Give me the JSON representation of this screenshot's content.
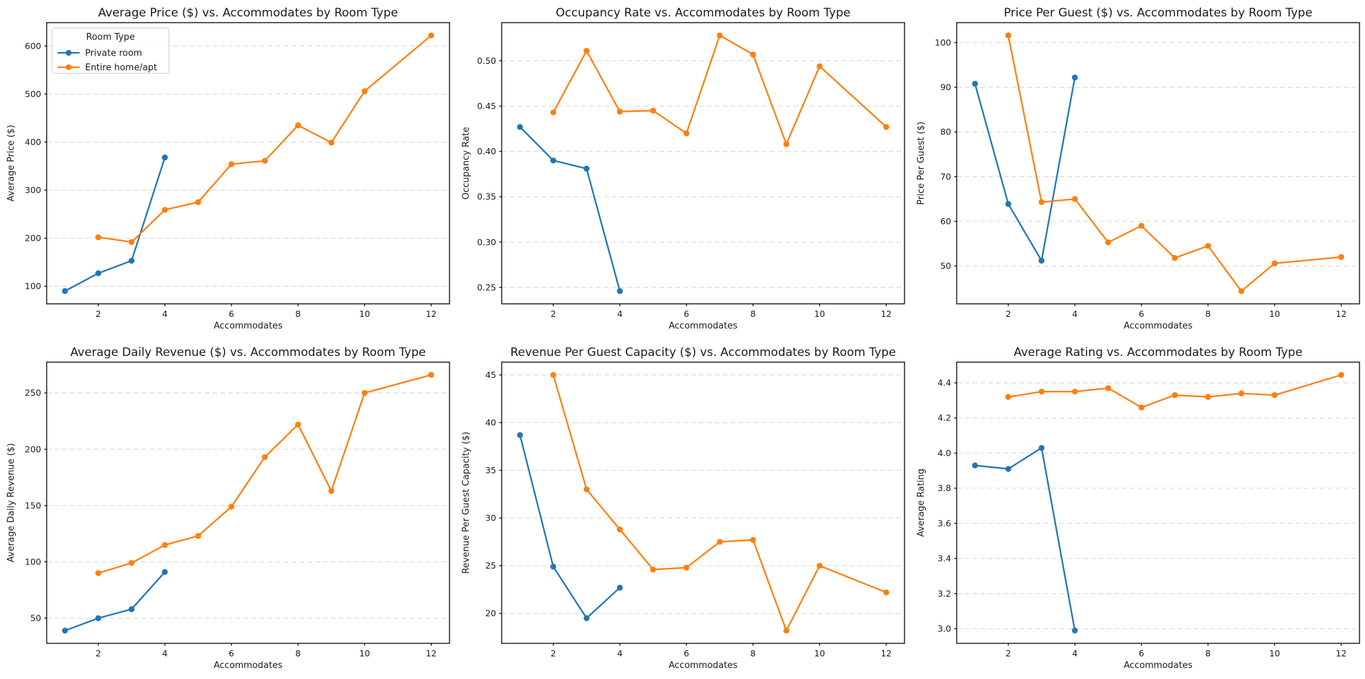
{
  "page": {
    "background": "#ffffff"
  },
  "colors": {
    "private_room": "#1f77b4",
    "entire_home": "#ff7f0e",
    "grid": "#d4d4d4",
    "axis": "#000000",
    "text": "#1a1a1a",
    "legend_border": "#cccccc",
    "legend_fill": "#ffffff"
  },
  "legend": {
    "title": "Room Type",
    "entries": [
      {
        "label": "Private room",
        "color": "#1f77b4"
      },
      {
        "label": "Entire home/apt",
        "color": "#ff7f0e"
      }
    ]
  },
  "chart_data": [
    {
      "type": "line",
      "title": "Average Price ($) vs. Accommodates by Room Type",
      "xlabel": "Accommodates",
      "ylabel": "Average Price ($)",
      "xlim": [
        0.45,
        12.55
      ],
      "ylim": [
        63.35,
        648.65
      ],
      "xticks": [
        2,
        4,
        6,
        8,
        10,
        12
      ],
      "yticks": {
        "values": [
          100,
          200,
          300,
          400,
          500,
          600
        ],
        "labels": [
          "100",
          "200",
          "300",
          "400",
          "500",
          "600"
        ]
      },
      "grid": "horizontal-dashed",
      "show_legend": true,
      "legend_position": "upper-left",
      "series": [
        {
          "name": "Private room",
          "color": "#1f77b4",
          "x": [
            1,
            2,
            3,
            4
          ],
          "y": [
            90,
            127,
            153,
            368
          ]
        },
        {
          "name": "Entire home/apt",
          "color": "#ff7f0e",
          "x": [
            2,
            3,
            4,
            5,
            6,
            7,
            8,
            9,
            10,
            12
          ],
          "y": [
            202,
            192,
            259,
            275,
            354,
            361,
            435,
            399,
            506,
            622
          ]
        }
      ]
    },
    {
      "type": "line",
      "title": "Occupancy Rate vs. Accommodates by Room Type",
      "xlabel": "Accommodates",
      "ylabel": "Occupancy Rate",
      "xlim": [
        0.45,
        12.55
      ],
      "ylim": [
        0.2319,
        0.5421
      ],
      "xticks": [
        2,
        4,
        6,
        8,
        10,
        12
      ],
      "yticks": {
        "values": [
          0.25,
          0.3,
          0.35,
          0.4,
          0.45,
          0.5
        ],
        "labels": [
          "0.25",
          "0.30",
          "0.35",
          "0.40",
          "0.45",
          "0.50"
        ]
      },
      "grid": "horizontal-dashed",
      "show_legend": false,
      "series": [
        {
          "name": "Private room",
          "color": "#1f77b4",
          "x": [
            1,
            2,
            3,
            4
          ],
          "y": [
            0.427,
            0.39,
            0.381,
            0.246
          ]
        },
        {
          "name": "Entire home/apt",
          "color": "#ff7f0e",
          "x": [
            2,
            3,
            4,
            5,
            6,
            7,
            8,
            9,
            10,
            12
          ],
          "y": [
            0.443,
            0.511,
            0.444,
            0.445,
            0.42,
            0.528,
            0.507,
            0.408,
            0.494,
            0.427
          ]
        }
      ]
    },
    {
      "type": "line",
      "title": "Price Per Guest ($) vs. Accommodates by Room Type",
      "xlabel": "Accommodates",
      "ylabel": "Price Per Guest ($)",
      "xlim": [
        0.45,
        12.55
      ],
      "ylim": [
        41.54,
        104.46
      ],
      "xticks": [
        2,
        4,
        6,
        8,
        10,
        12
      ],
      "yticks": {
        "values": [
          50,
          60,
          70,
          80,
          90,
          100
        ],
        "labels": [
          "50",
          "60",
          "70",
          "80",
          "90",
          "100"
        ]
      },
      "grid": "horizontal-dashed",
      "show_legend": false,
      "series": [
        {
          "name": "Private room",
          "color": "#1f77b4",
          "x": [
            1,
            2,
            3,
            4
          ],
          "y": [
            90.8,
            63.9,
            51.2,
            92.2
          ]
        },
        {
          "name": "Entire home/apt",
          "color": "#ff7f0e",
          "x": [
            2,
            3,
            4,
            5,
            6,
            7,
            8,
            9,
            10,
            12
          ],
          "y": [
            101.6,
            64.3,
            65.0,
            55.3,
            59.0,
            51.8,
            54.5,
            44.4,
            50.6,
            52.0
          ]
        }
      ]
    },
    {
      "type": "line",
      "title": "Average Daily Revenue ($) vs. Accommodates by Room Type",
      "xlabel": "Accommodates",
      "ylabel": "Average Daily Revenue ($)",
      "xlim": [
        0.45,
        12.55
      ],
      "ylim": [
        27.65,
        277.35
      ],
      "xticks": [
        2,
        4,
        6,
        8,
        10,
        12
      ],
      "yticks": {
        "values": [
          50,
          100,
          150,
          200,
          250
        ],
        "labels": [
          "50",
          "100",
          "150",
          "200",
          "250"
        ]
      },
      "grid": "horizontal-dashed",
      "show_legend": false,
      "series": [
        {
          "name": "Private room",
          "color": "#1f77b4",
          "x": [
            1,
            2,
            3,
            4
          ],
          "y": [
            39,
            50,
            58,
            91
          ]
        },
        {
          "name": "Entire home/apt",
          "color": "#ff7f0e",
          "x": [
            2,
            3,
            4,
            5,
            6,
            7,
            8,
            9,
            10,
            12
          ],
          "y": [
            90,
            99,
            115,
            123,
            149,
            193,
            222,
            163,
            250,
            266
          ]
        }
      ]
    },
    {
      "type": "line",
      "title": "Revenue Per Guest Capacity ($) vs. Accommodates by Room Type",
      "xlabel": "Accommodates",
      "ylabel": "Revenue Per Guest Capacity ($)",
      "xlim": [
        0.45,
        12.55
      ],
      "ylim": [
        16.86,
        46.34
      ],
      "xticks": [
        2,
        4,
        6,
        8,
        10,
        12
      ],
      "yticks": {
        "values": [
          20,
          25,
          30,
          35,
          40,
          45
        ],
        "labels": [
          "20",
          "25",
          "30",
          "35",
          "40",
          "45"
        ]
      },
      "grid": "horizontal-dashed",
      "show_legend": false,
      "series": [
        {
          "name": "Private room",
          "color": "#1f77b4",
          "x": [
            1,
            2,
            3,
            4
          ],
          "y": [
            38.7,
            24.9,
            19.5,
            22.7
          ]
        },
        {
          "name": "Entire home/apt",
          "color": "#ff7f0e",
          "x": [
            2,
            3,
            4,
            5,
            6,
            7,
            8,
            9,
            10,
            12
          ],
          "y": [
            45.0,
            33.0,
            28.8,
            24.6,
            24.8,
            27.5,
            27.7,
            18.2,
            25.0,
            22.2
          ]
        }
      ]
    },
    {
      "type": "line",
      "title": "Average Rating vs. Accommodates by Room Type",
      "xlabel": "Accommodates",
      "ylabel": "Average Rating",
      "xlim": [
        0.45,
        12.55
      ],
      "ylim": [
        2.917,
        4.518
      ],
      "xticks": [
        2,
        4,
        6,
        8,
        10,
        12
      ],
      "yticks": {
        "values": [
          3.0,
          3.2,
          3.4,
          3.6,
          3.8,
          4.0,
          4.2,
          4.4
        ],
        "labels": [
          "3.0",
          "3.2",
          "3.4",
          "3.6",
          "3.8",
          "4.0",
          "4.2",
          "4.4"
        ]
      },
      "grid": "horizontal-dashed",
      "show_legend": false,
      "series": [
        {
          "name": "Private room",
          "color": "#1f77b4",
          "x": [
            1,
            2,
            3,
            4
          ],
          "y": [
            3.93,
            3.91,
            4.03,
            2.99
          ]
        },
        {
          "name": "Entire home/apt",
          "color": "#ff7f0e",
          "x": [
            2,
            3,
            4,
            5,
            6,
            7,
            8,
            9,
            10,
            12
          ],
          "y": [
            4.32,
            4.35,
            4.35,
            4.37,
            4.26,
            4.33,
            4.32,
            4.34,
            4.33,
            4.445
          ]
        }
      ]
    }
  ]
}
